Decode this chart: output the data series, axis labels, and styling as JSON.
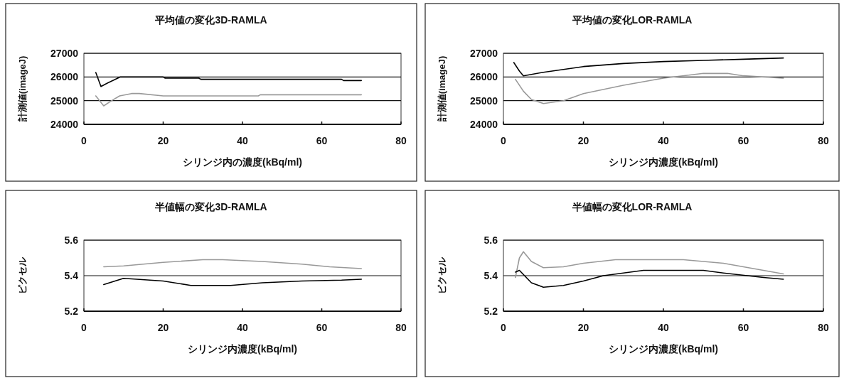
{
  "chart_data": [
    {
      "type": "line",
      "title": "平均値の変化3D-RAMLA",
      "xlabel": "シリンジ内の濃度(kBq/ml)",
      "ylabel": "計測値(imageJ)",
      "xlim": [
        0,
        80
      ],
      "ylim": [
        24000,
        27000
      ],
      "xticks": [
        0,
        20,
        40,
        60,
        80
      ],
      "yticks": [
        24000,
        25000,
        26000,
        27000
      ],
      "grid": "y",
      "series": [
        {
          "color": "#000000",
          "x": [
            3,
            4.3,
            6,
            9.2,
            20,
            20.5,
            29,
            29.5,
            65,
            65.5,
            70
          ],
          "values": [
            26190,
            25600,
            25750,
            26000,
            26000,
            25950,
            25950,
            25900,
            25900,
            25850,
            25850
          ]
        },
        {
          "color": "#999999",
          "x": [
            3,
            5,
            7,
            9,
            12,
            14,
            20,
            44,
            44.5,
            70
          ],
          "values": [
            25200,
            24780,
            25000,
            25200,
            25300,
            25300,
            25200,
            25200,
            25250,
            25250
          ]
        }
      ]
    },
    {
      "type": "line",
      "title": "平均値の変化LOR-RAMLA",
      "xlabel": "シリンジ内濃度(kBq/ml)",
      "ylabel": "計測値(imageJ)",
      "xlim": [
        0,
        80
      ],
      "ylim": [
        24000,
        27000
      ],
      "xticks": [
        0,
        20,
        40,
        60,
        80
      ],
      "yticks": [
        24000,
        25000,
        26000,
        27000
      ],
      "grid": "y",
      "series": [
        {
          "color": "#000000",
          "x": [
            2.6,
            4,
            5,
            10,
            20,
            30,
            40,
            50,
            60,
            70
          ],
          "values": [
            26610,
            26250,
            26050,
            26200,
            26440,
            26570,
            26650,
            26700,
            26750,
            26800
          ]
        },
        {
          "color": "#999999",
          "x": [
            3,
            5,
            7,
            10,
            15,
            20,
            30,
            40,
            50,
            56,
            60,
            70
          ],
          "values": [
            25900,
            25400,
            25050,
            24880,
            25000,
            25300,
            25650,
            25950,
            26150,
            26150,
            26050,
            25950
          ]
        }
      ]
    },
    {
      "type": "line",
      "title": "半値幅の変化3D-RAMLA",
      "xlabel": "シリンジ内濃度(kBq/ml)",
      "ylabel": "ピクセル",
      "xlim": [
        0,
        80
      ],
      "ylim": [
        5.2,
        5.6
      ],
      "xticks": [
        0,
        20,
        40,
        60,
        80
      ],
      "yticks": [
        5.2,
        5.4,
        5.6
      ],
      "grid": "y",
      "series": [
        {
          "color": "#999999",
          "x": [
            5,
            10,
            20,
            30,
            35,
            45,
            55,
            62,
            70
          ],
          "values": [
            5.45,
            5.455,
            5.475,
            5.49,
            5.49,
            5.48,
            5.465,
            5.45,
            5.44
          ]
        },
        {
          "color": "#000000",
          "x": [
            5,
            10,
            20,
            27,
            37,
            45,
            55,
            65,
            70
          ],
          "values": [
            5.35,
            5.385,
            5.37,
            5.345,
            5.345,
            5.36,
            5.37,
            5.375,
            5.38
          ]
        }
      ]
    },
    {
      "type": "line",
      "title": "半値幅の変化LOR-RAMLA",
      "xlabel": "シリンジ内濃度(kBq/ml)",
      "ylabel": "ピクセル",
      "xlim": [
        0,
        80
      ],
      "ylim": [
        5.2,
        5.6
      ],
      "xticks": [
        0,
        20,
        40,
        60,
        80
      ],
      "yticks": [
        5.2,
        5.4,
        5.6
      ],
      "grid": "y",
      "series": [
        {
          "color": "#999999",
          "x": [
            3,
            4,
            5,
            7,
            10,
            15,
            20,
            28,
            45,
            55,
            65,
            70
          ],
          "values": [
            5.39,
            5.5,
            5.535,
            5.48,
            5.445,
            5.45,
            5.47,
            5.49,
            5.49,
            5.47,
            5.43,
            5.41
          ]
        },
        {
          "color": "#000000",
          "x": [
            3,
            4,
            7,
            10,
            15,
            20,
            25,
            35,
            50,
            55,
            65,
            70
          ],
          "values": [
            5.42,
            5.43,
            5.36,
            5.335,
            5.345,
            5.37,
            5.4,
            5.43,
            5.43,
            5.415,
            5.39,
            5.38
          ]
        }
      ]
    }
  ]
}
